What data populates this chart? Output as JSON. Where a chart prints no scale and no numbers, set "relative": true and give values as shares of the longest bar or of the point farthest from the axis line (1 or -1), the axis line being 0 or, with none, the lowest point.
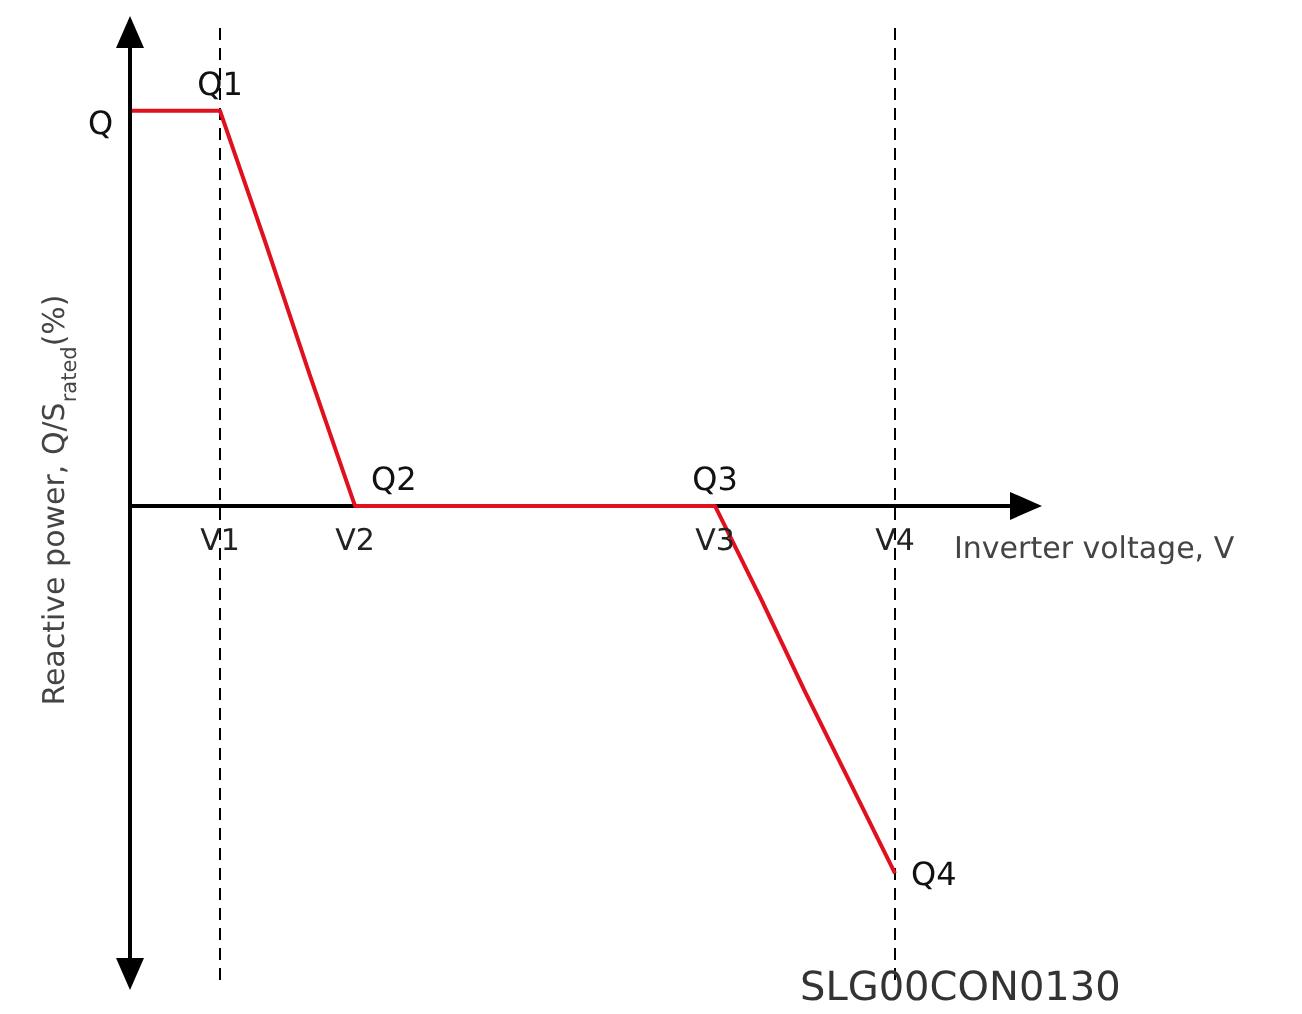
{
  "chart_data": {
    "type": "line",
    "relative": true,
    "xlabel": "Inverter voltage, V",
    "ylabel": "Reactive power, Q/S$_{rated}$(%)",
    "categories": [
      null,
      null,
      "V1",
      null,
      null,
      "V2",
      null,
      null,
      null,
      null,
      null,
      null,
      null,
      "V3",
      null,
      null,
      null,
      "V4",
      null,
      null,
      null
    ],
    "series": [
      {
        "color": "#e0101e",
        "values": [
          1,
          1,
          1,
          0.67,
          0.33,
          0,
          0,
          0,
          0,
          0,
          0,
          0,
          0,
          0,
          -0.23,
          -0.47,
          -0.7,
          -0.93,
          null,
          null,
          null
        ]
      }
    ],
    "ref_lines": [
      {
        "axis": "x",
        "value": "V1",
        "line_style": "dashed",
        "color": "#000000"
      },
      {
        "axis": "x",
        "value": "V4",
        "line_style": "dashed",
        "color": "#000000"
      }
    ],
    "annotations": [
      "Q",
      {
        "text": "Q1",
        "x": "V1",
        "y": 1
      },
      {
        "text": "Q2",
        "x": "V2",
        "y": 0
      },
      {
        "text": "Q3",
        "x": "V3",
        "y": 0
      },
      {
        "text": "Q4",
        "x": "V4",
        "y": -0.93
      },
      "SLG00CON0130"
    ],
    "marker": "none",
    "line_style": "solid",
    "grid": false
  }
}
